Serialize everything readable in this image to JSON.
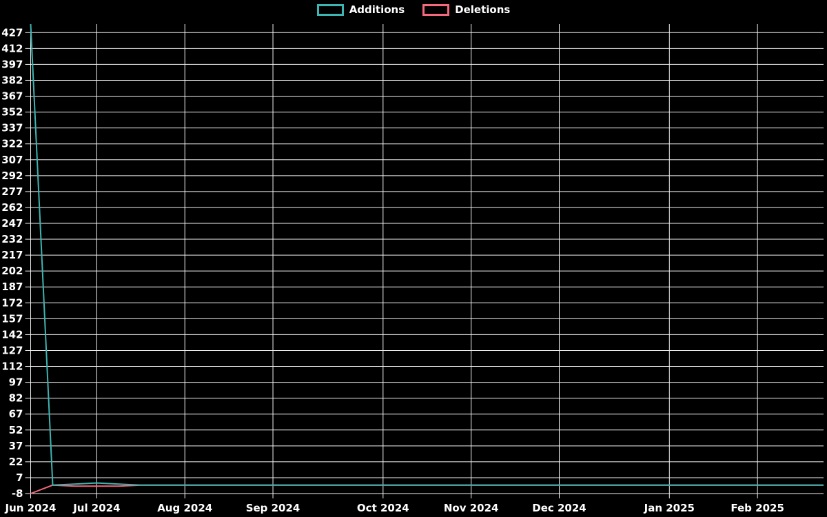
{
  "legend": {
    "items": [
      {
        "label": "Additions",
        "color": "#3db5b2"
      },
      {
        "label": "Deletions",
        "color": "#f4697e"
      }
    ]
  },
  "chart_data": {
    "type": "line",
    "title": "",
    "xlabel": "",
    "ylabel": "",
    "x_unit": "week",
    "n_points": 37,
    "series": [
      {
        "name": "Additions",
        "color": "#3db5b2",
        "values": [
          435,
          0,
          1,
          2,
          1,
          0,
          0,
          0,
          0,
          0,
          0,
          0,
          0,
          0,
          0,
          0,
          0,
          0,
          0,
          0,
          0,
          0,
          0,
          0,
          0,
          0,
          0,
          0,
          0,
          0,
          0,
          0,
          0,
          0,
          0,
          0,
          0
        ]
      },
      {
        "name": "Deletions",
        "color": "#f4697e",
        "values": [
          -8,
          0,
          -1,
          -1,
          -1,
          0,
          0,
          0,
          0,
          0,
          0,
          0,
          0,
          0,
          0,
          0,
          0,
          0,
          0,
          0,
          0,
          0,
          0,
          0,
          0,
          0,
          0,
          0,
          0,
          0,
          0,
          0,
          0,
          0,
          0,
          0,
          0
        ]
      }
    ],
    "x_ticks": [
      {
        "label": "Jun 2024",
        "week": 0
      },
      {
        "label": "Jul 2024",
        "week": 3
      },
      {
        "label": "Aug 2024",
        "week": 7
      },
      {
        "label": "Sep 2024",
        "week": 11
      },
      {
        "label": "Oct 2024",
        "week": 16
      },
      {
        "label": "Nov 2024",
        "week": 20
      },
      {
        "label": "Dec 2024",
        "week": 24
      },
      {
        "label": "Jan 2025",
        "week": 29
      },
      {
        "label": "Feb 2025",
        "week": 33
      }
    ],
    "y_ticks": [
      427,
      412,
      397,
      382,
      367,
      352,
      337,
      322,
      307,
      292,
      277,
      262,
      247,
      232,
      217,
      202,
      187,
      172,
      157,
      142,
      127,
      112,
      97,
      82,
      67,
      52,
      37,
      22,
      7,
      -8
    ],
    "ylim": [
      -8,
      435
    ],
    "xlim_weeks": [
      0,
      36
    ],
    "grid": true,
    "legend_position": "top-center",
    "background": "#000000",
    "grid_color": "#f2f2f2",
    "text_color": "#ffffff",
    "line_width": 2
  }
}
